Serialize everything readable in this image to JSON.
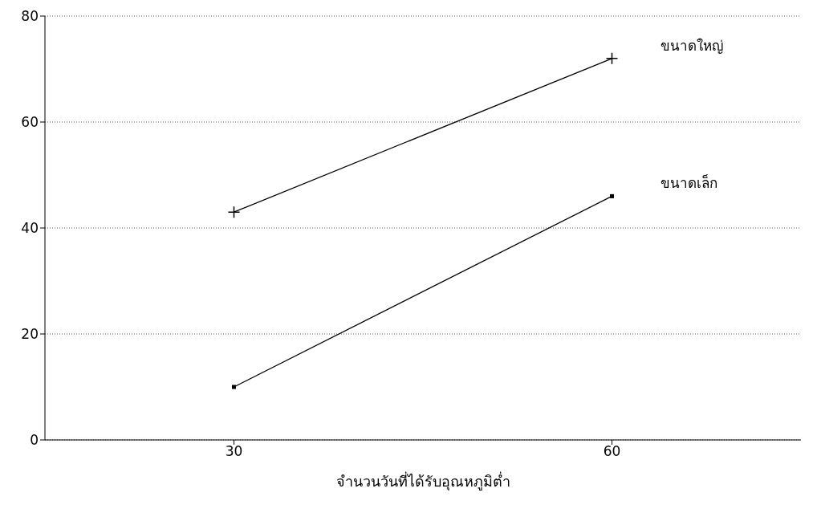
{
  "chart_data": {
    "type": "line",
    "xlabel": "จำนวนวันที่ได้รับอุณหภูมิต่ำ",
    "x": [
      30,
      60
    ],
    "xlim": [
      15,
      75
    ],
    "xticks": [
      30,
      60
    ],
    "ylim": [
      0,
      80
    ],
    "yticks": [
      0,
      20,
      40,
      60,
      80
    ],
    "grid": "y",
    "legend": false,
    "series": [
      {
        "name": "ขนาดใหญ่",
        "color": "#000000",
        "values": [
          43,
          72
        ],
        "marker": "cross"
      },
      {
        "name": "ขนาดเล็ก",
        "color": "#000000",
        "values": [
          10,
          46
        ],
        "marker": "square"
      }
    ]
  }
}
